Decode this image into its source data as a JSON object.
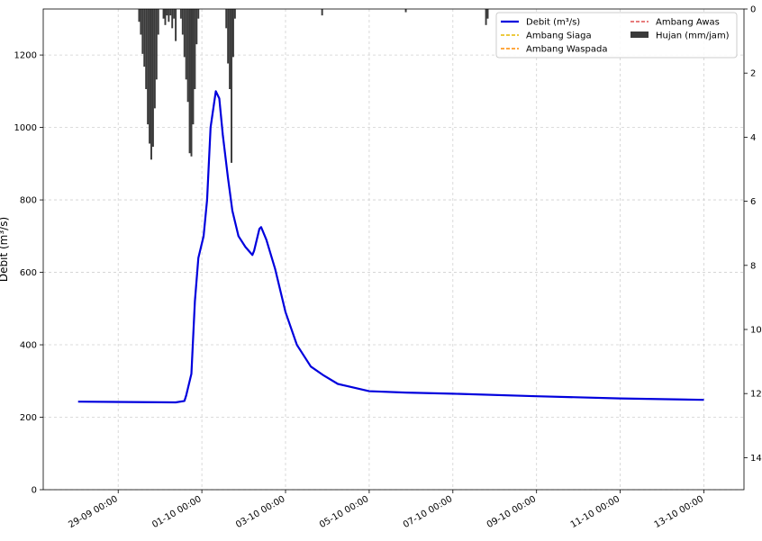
{
  "chart_data": {
    "type": "line",
    "y_label": "Debit (m³/s)",
    "x": [
      "28-09 01:00",
      "30-09 09:00",
      "30-09 14:00",
      "30-09 15:00",
      "30-09 18:00",
      "30-09 20:00",
      "30-09 22:00",
      "01-10 01:00",
      "01-10 03:00",
      "01-10 05:00",
      "01-10 08:00",
      "01-10 10:00",
      "01-10 12:00",
      "01-10 15:00",
      "01-10 17:30",
      "01-10 21:00",
      "02-10 01:00",
      "02-10 05:00",
      "02-10 06:00",
      "02-10 09:00",
      "02-10 10:00",
      "02-10 13:00",
      "02-10 18:00",
      "03-10 00:00",
      "03-10 06:30",
      "03-10 14:30",
      "03-10 22:00",
      "04-10 06:00",
      "05-10 00:00",
      "05-10 21:00",
      "07-10 00:00",
      "09-10 00:00",
      "11-10 00:00",
      "13-10 00:00"
    ],
    "series": [
      {
        "name": "Debit (m³/s)",
        "color": "#0000dd",
        "values": [
          243,
          241,
          245,
          260,
          320,
          520,
          640,
          700,
          800,
          1000,
          1100,
          1080,
          980,
          860,
          770,
          700,
          670,
          648,
          660,
          720,
          725,
          690,
          610,
          490,
          400,
          340,
          315,
          292,
          272,
          268,
          265,
          258,
          252,
          248
        ]
      },
      {
        "name": "Hujan (mm/jam)",
        "color": "#3a3a3a",
        "axis": "y2",
        "x": [
          "29-09 12:00",
          "29-09 13:00",
          "29-09 14:00",
          "29-09 15:00",
          "29-09 16:00",
          "29-09 17:00",
          "29-09 18:00",
          "29-09 19:00",
          "29-09 20:00",
          "29-09 21:00",
          "29-09 22:00",
          "29-09 23:00",
          "30-09 02:00",
          "30-09 03:00",
          "30-09 04:00",
          "30-09 05:00",
          "30-09 06:00",
          "30-09 07:00",
          "30-09 08:00",
          "30-09 09:00",
          "30-09 12:00",
          "30-09 13:00",
          "30-09 14:00",
          "30-09 15:00",
          "30-09 16:00",
          "30-09 17:00",
          "30-09 18:00",
          "30-09 19:00",
          "30-09 20:00",
          "30-09 21:00",
          "30-09 22:00",
          "01-10 14:00",
          "01-10 15:00",
          "01-10 16:00",
          "01-10 17:00",
          "01-10 18:00",
          "01-10 19:00",
          "03-10 21:00",
          "05-10 21:00",
          "07-10 19:00",
          "07-10 20:00"
        ],
        "values": [
          0.4,
          0.8,
          1.4,
          1.8,
          2.5,
          3.6,
          4.2,
          4.7,
          4.3,
          3.1,
          2.2,
          0.8,
          0.3,
          0.5,
          0.2,
          0.4,
          0.2,
          0.6,
          0.3,
          1.0,
          0.3,
          0.8,
          1.5,
          2.2,
          2.9,
          4.5,
          4.6,
          3.6,
          2.5,
          1.1,
          0.3,
          0.6,
          1.7,
          2.5,
          4.8,
          1.5,
          0.3,
          0.2,
          0.1,
          0.5,
          0.3
        ]
      }
    ],
    "thresholds": [
      {
        "name": "Ambang Siaga",
        "color": "#e6b800"
      },
      {
        "name": "Ambang Waspada",
        "color": "#ff8c00"
      },
      {
        "name": "Ambang Awas",
        "color": "#e05050"
      }
    ],
    "xlim": [
      "27-09 05:00",
      "13-10 23:00"
    ],
    "xticks": [
      "29-09 00:00",
      "01-10 00:00",
      "03-10 00:00",
      "05-10 00:00",
      "07-10 00:00",
      "09-10 00:00",
      "11-10 00:00",
      "13-10 00:00"
    ],
    "ylim": [
      0,
      1327
    ],
    "yticks": [
      0,
      200,
      400,
      600,
      800,
      1000,
      1200
    ],
    "y2lim": [
      0,
      15
    ],
    "y2ticks": [
      0,
      2,
      4,
      6,
      8,
      10,
      12,
      14
    ],
    "y2_inverted": true,
    "grid": true
  }
}
